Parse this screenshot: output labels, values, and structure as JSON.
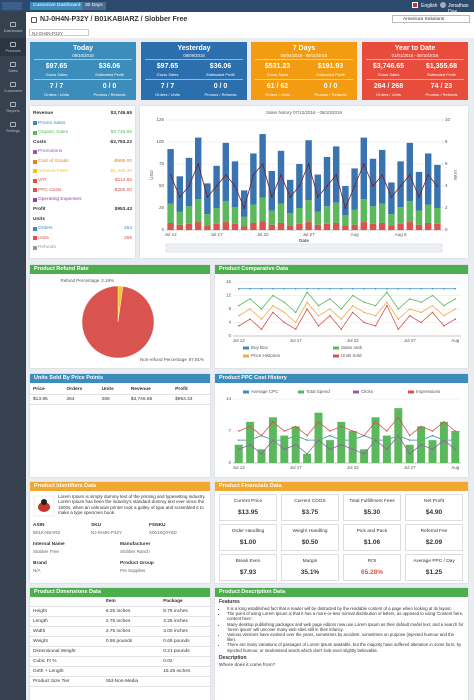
{
  "topbar": {
    "buttons": [
      "Customize Dashboard",
      "30 Days"
    ],
    "language": "English",
    "user": "Jonathan Doe"
  },
  "header": {
    "title": "NJ-0H4N-P32Y / B01KABIARZ / Slobber Free",
    "account": "American Solutions",
    "selector": "NJ-0H4N-P32Y"
  },
  "sidebar": [
    "Dashboard",
    "Products",
    "Sales",
    "Customers",
    "Reports",
    "Settings"
  ],
  "kpis": [
    {
      "title": "Today",
      "date": "08/10/2016",
      "color": "#3c8dbc",
      "gross": "$97.65",
      "gross_label": "Gross Sales",
      "profit": "$36.06",
      "profit_label": "Estimated Profit",
      "orders": "7 / 7",
      "orders_label": "Orders / Units",
      "promos": "0 / 0",
      "promos_label": "Promos / Refunds"
    },
    {
      "title": "Yesterday",
      "date": "08/09/2016",
      "color": "#2b6fae",
      "gross": "$97.65",
      "gross_label": "Gross Sales",
      "profit": "$36.06",
      "profit_label": "Estimated Profit",
      "orders": "7 / 7",
      "orders_label": "Orders / Units",
      "promos": "0 / 0",
      "promos_label": "Promos / Refunds"
    },
    {
      "title": "7 Days",
      "date": "08/04/2016 - 08/10/2016",
      "color": "#f39c12",
      "gross": "$531.23",
      "gross_label": "Gross Sales",
      "profit": "$191.93",
      "profit_label": "Estimated Profit",
      "orders": "61 / 62",
      "orders_label": "Orders / Units",
      "promos": "0 / 0",
      "promos_label": "Promos / Refunds"
    },
    {
      "title": "Year to Date",
      "date": "01/01/2016 - 08/10/2016",
      "color": "#e74c3c",
      "gross": "$3,746.65",
      "gross_label": "Gross Sales",
      "profit": "$1,355.68",
      "profit_label": "Estimated Profit",
      "orders": "264 / 268",
      "orders_label": "Orders / Units",
      "promos": "74 / 23",
      "promos_label": "Promos / Refunds"
    }
  ],
  "summary": {
    "rows": [
      {
        "label": "Revenue",
        "value": "$3,746.65",
        "bold": true
      },
      {
        "label": "Promo Sales",
        "color": "#3c8dbc"
      },
      {
        "label": "Organic Sales",
        "value": "$3,746.65",
        "color": "#5cb85c"
      },
      {
        "label": "Costs",
        "value": "-$2,793.22",
        "bold": true
      },
      {
        "label": "Promotions",
        "color": "#9b59b6"
      },
      {
        "label": "Cost of Goods",
        "value": "-$995.00",
        "color": "#e67e22"
      },
      {
        "label": "Amazon Fees",
        "value": "-$1,420.40",
        "color": "#f1c40f"
      },
      {
        "label": "VAT",
        "value": "-$112.82",
        "color": "#e74c3c"
      },
      {
        "label": "PPC Costs",
        "value": "-$265.00",
        "color": "#d9534f"
      },
      {
        "label": "Operating Expenses",
        "color": "#8e44ad"
      },
      {
        "label": "Profit",
        "value": "$953.43",
        "bold": true
      },
      {
        "label": "Units",
        "bold": true
      },
      {
        "label": "Orders",
        "value": "264",
        "color": "#3c8dbc"
      },
      {
        "label": "Units",
        "value": "268",
        "color": "#d9534f"
      },
      {
        "label": "Refunds",
        "color": "#999999"
      }
    ]
  },
  "sales_history": {
    "type": "bar",
    "stacked": true,
    "title": "Sales history 07/12/2016 - 08/10/2016",
    "xlabel": "Date",
    "ylabel": "USD",
    "y2label": "Units",
    "categories": [
      "Jul 12",
      null,
      null,
      null,
      null,
      "Jul 17",
      null,
      null,
      null,
      null,
      "Jul 22",
      null,
      null,
      null,
      null,
      "Jul 27",
      null,
      null,
      null,
      null,
      "Aug",
      null,
      null,
      null,
      null,
      "Aug 6",
      null,
      null,
      null,
      null
    ],
    "ylim": [
      0,
      125
    ],
    "yticks": [
      0,
      25,
      50,
      75,
      100,
      125
    ],
    "y2lim": [
      0,
      10
    ],
    "y2ticks": [
      0,
      2,
      4,
      6,
      8,
      10
    ],
    "series": [
      {
        "type": "bar",
        "color": "#d9534f",
        "values": [
          8,
          6,
          7,
          9,
          5,
          7,
          9,
          7,
          4,
          8,
          10,
          6,
          8,
          5,
          7,
          9,
          6,
          7,
          8,
          5,
          6,
          9,
          7,
          8,
          5,
          7,
          9,
          6,
          8,
          7
        ]
      },
      {
        "type": "bar",
        "color": "#5cb85c",
        "values": [
          22,
          15,
          20,
          26,
          13,
          18,
          24,
          19,
          11,
          21,
          27,
          16,
          22,
          14,
          18,
          25,
          15,
          20,
          23,
          12,
          17,
          26,
          20,
          22,
          13,
          19,
          24,
          16,
          21,
          18
        ]
      },
      {
        "type": "bar",
        "color": "#3a74b0",
        "values": [
          62,
          40,
          55,
          70,
          35,
          48,
          66,
          52,
          30,
          58,
          72,
          45,
          60,
          38,
          50,
          68,
          42,
          56,
          64,
          33,
          47,
          70,
          54,
          61,
          36,
          52,
          66,
          44,
          58,
          49
        ]
      },
      {
        "type": "line",
        "axis": "y2",
        "color": "#7b1e1e",
        "values": [
          5,
          3,
          4,
          6,
          3,
          4,
          5,
          4,
          2,
          5,
          6,
          3,
          5,
          3,
          4,
          6,
          3,
          4,
          5,
          2,
          4,
          6,
          4,
          5,
          3,
          4,
          5,
          3,
          5,
          4
        ]
      }
    ]
  },
  "refund": {
    "title": "Product Refund Rate",
    "chart": {
      "type": "pie",
      "labels": [
        "Refund Percentage",
        "Non-refund Percentage"
      ],
      "values": [
        2.19,
        97.81
      ],
      "value_labels": [
        "2.19%",
        "97.81%"
      ],
      "colors": [
        "#f5c518",
        "#d9534f"
      ]
    }
  },
  "comparative": {
    "title": "Product Comparative Data",
    "chart": {
      "type": "line",
      "legend": "bottom",
      "categories": [
        "Jul 12",
        null,
        null,
        null,
        null,
        "Jul 17",
        null,
        null,
        null,
        null,
        "Jul 22",
        null,
        null,
        null,
        null,
        "Jul 27",
        null,
        null,
        null,
        "Aug"
      ],
      "ylim": [
        0,
        16
      ],
      "yticks": [
        0,
        4,
        8,
        12,
        16
      ],
      "series": [
        {
          "name": "Buy Box",
          "type": "line",
          "color": "#3c8dbc",
          "values": [
            14,
            14,
            14,
            14,
            14,
            14,
            14,
            14,
            14,
            14,
            14,
            14,
            14,
            14,
            14,
            14,
            14,
            14,
            14,
            14
          ]
        },
        {
          "name": "Sales rank",
          "type": "line",
          "color": "#5cb85c",
          "values": [
            9,
            11,
            8,
            12,
            10,
            7,
            13,
            9,
            11,
            8,
            12,
            10,
            9,
            13,
            8,
            11,
            10,
            12,
            9,
            11
          ]
        },
        {
          "name": "Price Histories",
          "type": "line",
          "color": "#f0ad4e",
          "values": [
            6,
            8,
            5,
            9,
            7,
            4,
            10,
            6,
            8,
            5,
            9,
            7,
            6,
            10,
            5,
            8,
            7,
            9,
            6,
            8
          ]
        },
        {
          "name": "Units Sold",
          "type": "line",
          "color": "#d9534f",
          "values": [
            3,
            5,
            2,
            7,
            4,
            2,
            8,
            3,
            6,
            2,
            7,
            4,
            3,
            9,
            2,
            6,
            4,
            7,
            3,
            5
          ]
        }
      ]
    }
  },
  "units_table": {
    "title": "Units Sold By Price Points",
    "columns": [
      "Price",
      "Orders",
      "Units",
      "Revenue",
      "Profit"
    ],
    "rows": [
      [
        "$13.95",
        "264",
        "268",
        "$3,746.65",
        "$953.43"
      ]
    ]
  },
  "ppc": {
    "title": "Product PPC Cost History",
    "chart": {
      "type": "bar",
      "legend": "top",
      "categories": [
        "Jul 12",
        null,
        null,
        null,
        null,
        "Jul 17",
        null,
        null,
        null,
        null,
        "Jul 22",
        null,
        null,
        null,
        null,
        "Jul 27",
        null,
        null,
        null,
        "Aug"
      ],
      "ylim": [
        0,
        14
      ],
      "yticks": [
        0,
        7,
        14
      ],
      "series": [
        {
          "name": "Average CPC",
          "type": "line",
          "color": "#3c8dbc",
          "values": [
            5,
            5,
            6,
            5,
            5,
            6,
            5,
            5,
            6,
            5,
            5,
            6,
            5,
            5,
            6,
            5,
            5,
            6,
            5,
            5
          ]
        },
        {
          "name": "Total Spend",
          "type": "bar",
          "color": "#5cb85c",
          "values": [
            4,
            9,
            3,
            10,
            6,
            8,
            2,
            11,
            5,
            9,
            7,
            3,
            10,
            6,
            12,
            4,
            8,
            5,
            9,
            7
          ]
        },
        {
          "name": "Clicks",
          "type": "line",
          "color": "#9b59b6",
          "values": [
            3,
            4,
            2,
            5,
            3,
            4,
            2,
            5,
            3,
            4,
            3,
            2,
            5,
            3,
            6,
            2,
            4,
            3,
            5,
            3
          ]
        },
        {
          "name": "Impressions",
          "type": "line",
          "color": "#d9534f",
          "values": [
            7,
            8,
            6,
            9,
            7,
            8,
            6,
            9,
            7,
            8,
            7,
            6,
            9,
            7,
            10,
            6,
            8,
            7,
            9,
            7
          ]
        }
      ]
    }
  },
  "identifiers": {
    "title": "Product Identifiers Data",
    "text": "Lorem Ipsum is simply dummy text of the printing and typesetting industry. Lorem Ipsum has been the industry's standard dummy text ever since the 1500s, when an unknown printer took a galley of type and scrambled it to make a type specimen book.",
    "rows": [
      [
        {
          "label": "ASIN",
          "value": "B01KABIARZ"
        },
        {
          "label": "SKU",
          "value": "NJ-0H4N-P32Y"
        },
        {
          "label": "FSNKU",
          "value": "X0018Q0Y6D"
        }
      ],
      [
        {
          "label": "Internal Name",
          "value": "Slobber Free"
        },
        {
          "label": "Manufacturer",
          "value": "Slobber Ranch"
        }
      ],
      [
        {
          "label": "Brand",
          "value": "N/A"
        },
        {
          "label": "Product Group",
          "value": "Pet Supplies"
        }
      ]
    ]
  },
  "financials": {
    "title": "Product Financials Data",
    "cells": [
      {
        "label": "Current Price",
        "value": "$13.95"
      },
      {
        "label": "Current COGS",
        "value": "$3.75"
      },
      {
        "label": "Total Fulfillment Fees",
        "value": "$5.30"
      },
      {
        "label": "Net Profit",
        "value": "$4.90"
      },
      {
        "label": "Order Handling",
        "value": "$1.00"
      },
      {
        "label": "Weight Handling",
        "value": "$0.50"
      },
      {
        "label": "Pick and Pack",
        "value": "$1.06"
      },
      {
        "label": "Referral Fee",
        "value": "$2.09"
      },
      {
        "label": "Break Even",
        "value": "$7.93"
      },
      {
        "label": "Margin",
        "value": "35.1%"
      },
      {
        "label": "ROI",
        "value": "65.28%",
        "color": "#d9534f"
      },
      {
        "label": "Average PPC / Day",
        "value": "$1.25"
      }
    ]
  },
  "dimensions": {
    "title": "Product Dimensions Data",
    "columns": [
      "Item",
      "Package"
    ],
    "rows": [
      {
        "label": "Height",
        "item": "8.25 inches",
        "package": "8.75 inches"
      },
      {
        "label": "Length",
        "item": "2.75 inches",
        "package": "3.25 inches"
      },
      {
        "label": "Width",
        "item": "2.75 inches",
        "package": "3.00 inches"
      },
      {
        "label": "Weight",
        "item": "0.55 pounds",
        "package": "0.65 pounds"
      },
      {
        "label": "Dimensional Weight",
        "package": "0.21 pounds"
      },
      {
        "label": "Cubic Ft %",
        "package": "0.02"
      },
      {
        "label": "Girth + Length",
        "package": "15.25 inches"
      },
      {
        "label": "Product Size Tier",
        "item": "Std-Non-Media"
      }
    ]
  },
  "description": {
    "title": "Product Description Data",
    "features_label": "Features",
    "features": [
      "It is a long established fact that a reader will be distracted by the readable content of a page when looking at its layout.",
      "The point of using Lorem Ipsum is that it has a more-or-less normal distribution of letters, as opposed to using 'Content here, content here'.",
      "Many desktop publishing packages and web page editors now use Lorem Ipsum as their default model text, and a search for 'lorem ipsum' will uncover many web sites still in their infancy.",
      "Various versions have evolved over the years, sometimes by accident, sometimes on purpose (injected humour and the like).",
      "There are many variations of passages of Lorem Ipsum available, but the majority have suffered alteration in some form, by injected humour, or randomised words which don't look even slightly believable."
    ],
    "description_label": "Description",
    "question": "Where does it come from?"
  }
}
